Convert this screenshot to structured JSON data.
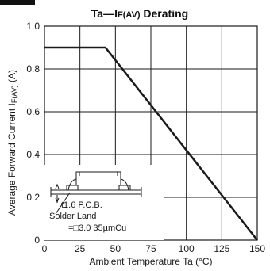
{
  "chart_data": {
    "type": "line",
    "title_main": "Ta—I",
    "title_sub": "F(AV)",
    "title_tail": " Derating",
    "xlabel": "Ambient Temperature   Ta (°C)",
    "ylabel_main": "Average Forward Current   I",
    "ylabel_sub": "F(AV)",
    "ylabel_tail": " (A)",
    "x_ticks": [
      "0",
      "25",
      "50",
      "75",
      "100",
      "125",
      "150"
    ],
    "y_ticks": [
      "0",
      "0.2",
      "0.4",
      "0.6",
      "0.8",
      "1.0"
    ],
    "xlim": [
      0,
      150
    ],
    "ylim": [
      0,
      1.0
    ],
    "grid": true,
    "series": [
      {
        "x": [
          0,
          43,
          150
        ],
        "y": [
          0.9,
          0.9,
          0
        ]
      }
    ],
    "line_color": "#1a1a1a",
    "grid_color": "#1a1a1a",
    "inset": {
      "board_label": "t1.6  P.C.B.",
      "land_label": "Solder Land",
      "land_spec": "=□3.0  35µmCu"
    }
  }
}
